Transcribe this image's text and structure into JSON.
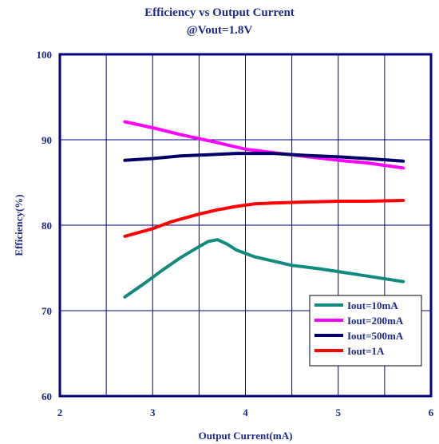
{
  "chart_data": {
    "type": "line",
    "title": "Efficiency vs Output Current",
    "subtitle": "@Vout=1.8V",
    "xlabel": "Output Current(mA)",
    "ylabel": "Efficiency(%)",
    "xlim": [
      2,
      6
    ],
    "ylim": [
      60,
      100
    ],
    "xticks": [
      2,
      3,
      4,
      5,
      6
    ],
    "yticks": [
      60,
      70,
      80,
      90,
      100
    ],
    "grid": true,
    "legend_position": "bottom-right",
    "colors": {
      "axis": "#000080",
      "grid": "#000080",
      "text": "#1f2a86"
    },
    "series": [
      {
        "name": "Iout=10mA",
        "color": "#138A80",
        "x": [
          2.7,
          2.9,
          3.1,
          3.3,
          3.5,
          3.6,
          3.7,
          3.8,
          3.9,
          4.1,
          4.3,
          4.5,
          4.8,
          5.1,
          5.4,
          5.7
        ],
        "y": [
          71.6,
          73.1,
          74.7,
          76.2,
          77.5,
          78.1,
          78.3,
          77.8,
          77.1,
          76.3,
          75.8,
          75.3,
          74.9,
          74.4,
          73.9,
          73.4
        ]
      },
      {
        "name": "Iout=200mA",
        "color": "#FF00FF",
        "x": [
          2.7,
          3.0,
          3.3,
          3.6,
          3.8,
          4.0,
          4.3,
          4.6,
          5.0,
          5.3,
          5.7
        ],
        "y": [
          92.1,
          91.4,
          90.6,
          89.9,
          89.4,
          88.9,
          88.5,
          88.1,
          87.6,
          87.3,
          86.7
        ]
      },
      {
        "name": "Iout=500mA",
        "color": "#000066",
        "x": [
          2.7,
          3.0,
          3.3,
          3.5,
          3.7,
          3.9,
          4.1,
          4.3,
          4.6,
          5.0,
          5.3,
          5.7
        ],
        "y": [
          87.6,
          87.8,
          88.1,
          88.2,
          88.3,
          88.4,
          88.4,
          88.4,
          88.2,
          88.0,
          87.8,
          87.5
        ]
      },
      {
        "name": "Iout=1A",
        "color": "#FF0000",
        "x": [
          2.7,
          3.0,
          3.2,
          3.5,
          3.7,
          3.9,
          4.1,
          4.3,
          4.6,
          5.0,
          5.3,
          5.7
        ],
        "y": [
          78.7,
          79.6,
          80.4,
          81.3,
          81.8,
          82.2,
          82.5,
          82.6,
          82.7,
          82.8,
          82.8,
          82.9
        ]
      }
    ]
  }
}
